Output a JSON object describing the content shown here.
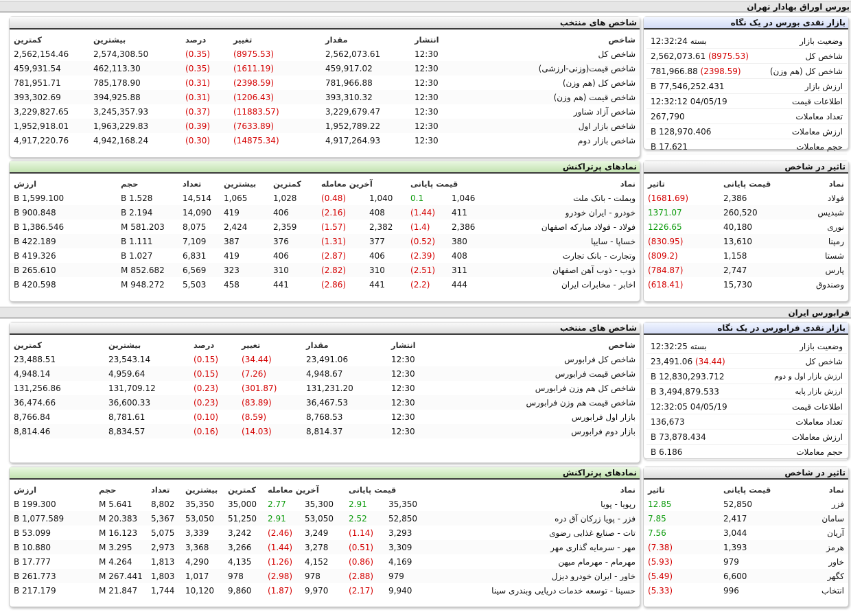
{
  "tse": {
    "section_title": "بورس اوراق بهادار تهران",
    "overview": {
      "title": "بازار نقدی بورس در یک نگاه",
      "rows": [
        {
          "label": "وضعیت بازار",
          "value": "بسته 12:32:24",
          "change": ""
        },
        {
          "label": "شاخص کل",
          "value": "2,562,073.61",
          "change": "(8975.53)"
        },
        {
          "label": "شاخص کل (هم وزن)",
          "value": "781,966.88",
          "change": "(2398.59)"
        },
        {
          "label": "ارزش بازار",
          "value": "77,546,252.431 B",
          "change": ""
        },
        {
          "label": "اطلاعات قیمت",
          "value": "04/05/19 12:32:12",
          "change": ""
        },
        {
          "label": "تعداد معاملات",
          "value": "267,790",
          "change": ""
        },
        {
          "label": "ارزش معاملات",
          "value": "128,970.406 B",
          "change": ""
        },
        {
          "label": "حجم معاملات",
          "value": "17.621 B",
          "change": ""
        }
      ]
    },
    "indices": {
      "title": "شاخص های منتخب",
      "headers": [
        "شاخص",
        "انتشار",
        "مقدار",
        "تغییر",
        "درصد",
        "بیشترین",
        "کمترین"
      ],
      "rows": [
        [
          "شاخص کل",
          "12:30",
          "2,562,073.61",
          "(8975.53)",
          "(0.35)",
          "2,574,308.50",
          "2,562,154.46"
        ],
        [
          "شاخص قیمت(وزنی-ارزشی)",
          "12:30",
          "459,917.02",
          "(1611.19)",
          "(0.35)",
          "462,113.30",
          "459,931.54"
        ],
        [
          "شاخص کل (هم وزن)",
          "12:30",
          "781,966.88",
          "(2398.59)",
          "(0.31)",
          "785,178.90",
          "781,951.71"
        ],
        [
          "شاخص قیمت (هم وزن)",
          "12:30",
          "393,310.32",
          "(1206.43)",
          "(0.31)",
          "394,925.88",
          "393,302.69"
        ],
        [
          "شاخص آزاد شناور",
          "12:30",
          "3,229,679.47",
          "(11883.57)",
          "(0.37)",
          "3,245,357.93",
          "3,229,827.65"
        ],
        [
          "شاخص بازار اول",
          "12:30",
          "1,952,789.22",
          "(7633.89)",
          "(0.39)",
          "1,963,229.83",
          "1,952,918.01"
        ],
        [
          "شاخص بازار دوم",
          "12:30",
          "4,917,264.93",
          "(14875.34)",
          "(0.30)",
          "4,942,168.24",
          "4,917,220.76"
        ]
      ]
    },
    "impact": {
      "title": "تاثیر در شاخص",
      "headers": [
        "نماد",
        "قیمت پایانی",
        "تاثیر"
      ],
      "rows": [
        [
          "فولاد",
          "2,386",
          "(1681.69)"
        ],
        [
          "شبدیس",
          "260,520",
          "1371.07"
        ],
        [
          "نوری",
          "40,180",
          "1226.65"
        ],
        [
          "رمپنا",
          "13,610",
          "(830.95)"
        ],
        [
          "شستا",
          "1,158",
          "(809.2)"
        ],
        [
          "پارس",
          "2,747",
          "(784.87)"
        ],
        [
          "وصندوق",
          "15,730",
          "(618.41)"
        ]
      ]
    },
    "active": {
      "title": "نمادهای پرتراکنش",
      "headers": [
        "نماد",
        "قیمت پایانی",
        "آخرین معامله",
        "کمترین",
        "بیشترین",
        "تعداد",
        "حجم",
        "ارزش"
      ],
      "rows": [
        [
          "وبملت - بانک ملت",
          "1,046",
          "0.1",
          "1,040",
          "(0.48)",
          "1,028",
          "1,065",
          "14,514",
          "1.528 B",
          "1,599.100 B"
        ],
        [
          "خودرو - ایران خودرو",
          "411",
          "(1.44)",
          "408",
          "(2.16)",
          "406",
          "419",
          "14,090",
          "2.194 B",
          "900.848 B"
        ],
        [
          "فولاد - فولاد مبارکه اصفهان",
          "2,386",
          "(1.4)",
          "2,382",
          "(1.57)",
          "2,359",
          "2,424",
          "8,075",
          "581.203 M",
          "1,386.546 B"
        ],
        [
          "خساپا - سایپا",
          "380",
          "(0.52)",
          "377",
          "(1.31)",
          "376",
          "387",
          "7,109",
          "1.111 B",
          "422.189 B"
        ],
        [
          "وتجارت - بانک تجارت",
          "408",
          "(2.39)",
          "406",
          "(2.87)",
          "406",
          "419",
          "6,831",
          "1.027 B",
          "419.326 B"
        ],
        [
          "ذوب - ذوب آهن اصفهان",
          "311",
          "(2.51)",
          "310",
          "(2.82)",
          "310",
          "323",
          "6,569",
          "852.682 M",
          "265.610 B"
        ],
        [
          "اخابر - مخابرات ایران",
          "444",
          "(2.2)",
          "441",
          "(2.86)",
          "441",
          "458",
          "5,503",
          "948.272 M",
          "420.598 B"
        ]
      ]
    }
  },
  "ifb": {
    "section_title": "فرابورس ایران",
    "overview": {
      "title": "بازار نقدی فرابورس در یک نگاه",
      "rows": [
        {
          "label": "وضعیت بازار",
          "value": "بسته 12:32:25",
          "change": ""
        },
        {
          "label": "شاخص کل",
          "value": "23,491.06",
          "change": "(34.44)"
        },
        {
          "label": "ارزش بازار اول و دوم",
          "value": "12,830,293.712 B",
          "change": ""
        },
        {
          "label": "ارزش بازار پایه",
          "value": "3,494,879.533 B",
          "change": ""
        },
        {
          "label": "اطلاعات قیمت",
          "value": "04/05/19 12:32:05",
          "change": ""
        },
        {
          "label": "تعداد معاملات",
          "value": "136,673",
          "change": ""
        },
        {
          "label": "ارزش معاملات",
          "value": "73,878.434 B",
          "change": ""
        },
        {
          "label": "حجم معاملات",
          "value": "6.186 B",
          "change": ""
        }
      ]
    },
    "indices": {
      "title": "شاخص های منتخب",
      "headers": [
        "شاخص",
        "انتشار",
        "مقدار",
        "تغییر",
        "درصد",
        "بیشترین",
        "کمترین"
      ],
      "rows": [
        [
          "شاخص کل فرابورس",
          "12:30",
          "23,491.06",
          "(34.44)",
          "(0.15)",
          "23,543.14",
          "23,488.51"
        ],
        [
          "شاخص قیمت فرابورس",
          "12:30",
          "4,948.67",
          "(7.26)",
          "(0.15)",
          "4,959.64",
          "4,948.14"
        ],
        [
          "شاخص کل هم وزن فرابورس",
          "12:30",
          "131,231.20",
          "(301.87)",
          "(0.23)",
          "131,709.12",
          "131,256.86"
        ],
        [
          "شاخص قیمت هم وزن فرابورس",
          "12:30",
          "36,467.53",
          "(83.89)",
          "(0.23)",
          "36,600.33",
          "36,474.66"
        ],
        [
          "بازار اول فرابورس",
          "12:30",
          "8,768.53",
          "(8.59)",
          "(0.10)",
          "8,781.61",
          "8,766.84"
        ],
        [
          "بازار دوم فرابورس",
          "12:30",
          "8,814.37",
          "(14.03)",
          "(0.16)",
          "8,834.57",
          "8,814.46"
        ]
      ]
    },
    "impact": {
      "title": "تاثیر در شاخص",
      "headers": [
        "نماد",
        "قیمت پایانی",
        "تاثیر"
      ],
      "rows": [
        [
          "فزر",
          "52,850",
          "12.85"
        ],
        [
          "سامان",
          "2,417",
          "7.85"
        ],
        [
          "آریان",
          "3,044",
          "7.56"
        ],
        [
          "هرمز",
          "1,393",
          "(7.38)"
        ],
        [
          "خاور",
          "979",
          "(5.93)"
        ],
        [
          "کگهر",
          "6,600",
          "(5.49)"
        ],
        [
          "انتخاب",
          "996",
          "(5.33)"
        ]
      ]
    },
    "active": {
      "title": "نمادهای پرتراکنش",
      "headers": [
        "نماد",
        "قیمت پایانی",
        "آخرین معامله",
        "کمترین",
        "بیشترین",
        "تعداد",
        "حجم",
        "ارزش"
      ],
      "rows": [
        [
          "رپویا - پویا",
          "35,350",
          "2.91",
          "35,300",
          "2.77",
          "35,000",
          "35,350",
          "8,802",
          "5.641 M",
          "199.300 B"
        ],
        [
          "فزر - پویا زرکان آق دره",
          "52,850",
          "2.52",
          "53,050",
          "2.91",
          "51,250",
          "53,050",
          "5,367",
          "20.383 M",
          "1,077.589 B"
        ],
        [
          "تات - صنایع غذایی رضوی",
          "3,293",
          "(1.14)",
          "3,249",
          "(2.46)",
          "3,242",
          "3,339",
          "5,075",
          "16.123 M",
          "53.099 B"
        ],
        [
          "مهر - سرمایه گذاری مهر",
          "3,309",
          "(0.51)",
          "3,278",
          "(1.44)",
          "3,266",
          "3,368",
          "2,973",
          "3.295 M",
          "10.880 B"
        ],
        [
          "مهرمام - مهرمام میهن",
          "4,169",
          "(0.86)",
          "4,152",
          "(1.26)",
          "4,135",
          "4,290",
          "1,813",
          "4.264 M",
          "17.777 B"
        ],
        [
          "خاور - ایران خودرو دیزل",
          "979",
          "(2.88)",
          "978",
          "(2.98)",
          "978",
          "1,017",
          "1,803",
          "267.441 M",
          "261.773 B"
        ],
        [
          "حسینا - توسعه خدمات دریایی وبندری سینا",
          "9,940",
          "(2.17)",
          "9,970",
          "(1.87)",
          "9,860",
          "10,120",
          "1,744",
          "21.847 M",
          "217.179 B"
        ]
      ]
    }
  }
}
